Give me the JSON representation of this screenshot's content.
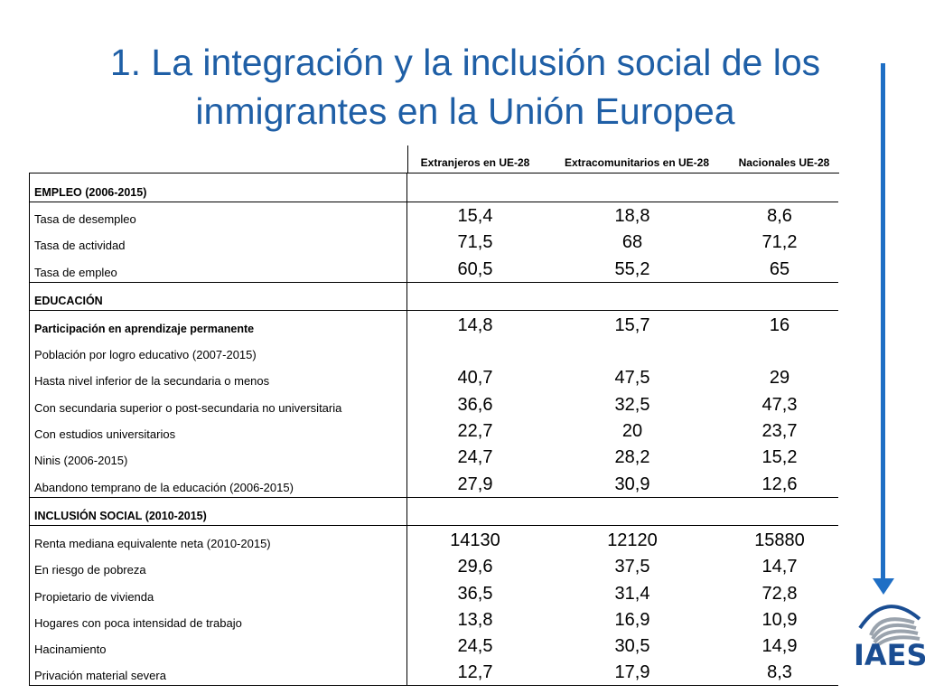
{
  "title": {
    "line1": "1. La integración y la inclusión social de los",
    "line2": "inmigrantes en la Unión Europea"
  },
  "columns": [
    "Extranjeros en UE-28",
    "Extracomunitarios en UE-28",
    "Nacionales UE-28"
  ],
  "sections": {
    "empleo": "EMPLEO (2006-2015)",
    "educacion": "EDUCACIÓN",
    "inclusion": "INCLUSIÓN SOCIAL (2010-2015)"
  },
  "rows": {
    "r1": {
      "label": "Tasa de desempleo",
      "v1": "15,4",
      "v2": "18,8",
      "v3": "8,6"
    },
    "r2": {
      "label": "Tasa de actividad",
      "v1": "71,5",
      "v2": "68",
      "v3": "71,2"
    },
    "r3": {
      "label": "Tasa de empleo",
      "v1": "60,5",
      "v2": "55,2",
      "v3": "65"
    },
    "r4": {
      "label": "Participación en aprendizaje permanente",
      "v1": "14,8",
      "v2": "15,7",
      "v3": "16"
    },
    "r5": {
      "label": "Población por logro educativo (2007-2015)",
      "v1": "",
      "v2": "",
      "v3": ""
    },
    "r6": {
      "label": "Hasta nivel inferior de la secundaria o menos",
      "v1": "40,7",
      "v2": "47,5",
      "v3": "29"
    },
    "r7": {
      "label": "Con secundaria superior o post-secundaria no universitaria",
      "v1": "36,6",
      "v2": "32,5",
      "v3": "47,3"
    },
    "r8": {
      "label": "Con estudios universitarios",
      "v1": "22,7",
      "v2": "20",
      "v3": "23,7"
    },
    "r9": {
      "label": "Ninis (2006-2015)",
      "v1": "24,7",
      "v2": "28,2",
      "v3": "15,2"
    },
    "r10": {
      "label": "Abandono temprano de la educación (2006-2015)",
      "v1": "27,9",
      "v2": "30,9",
      "v3": "12,6"
    },
    "r11": {
      "label": "Renta mediana equivalente neta (2010-2015)",
      "v1": "14130",
      "v2": "12120",
      "v3": "15880"
    },
    "r12": {
      "label": "En riesgo de pobreza",
      "v1": "29,6",
      "v2": "37,5",
      "v3": "14,7"
    },
    "r13": {
      "label": "Propietario de vivienda",
      "v1": "36,5",
      "v2": "31,4",
      "v3": "72,8"
    },
    "r14": {
      "label": "Hogares con poca intensidad de trabajo",
      "v1": "13,8",
      "v2": "16,9",
      "v3": "10,9"
    },
    "r15": {
      "label": "Hacinamiento",
      "v1": "24,5",
      "v2": "30,5",
      "v3": "14,9"
    },
    "r16": {
      "label": "Privación material severa",
      "v1": "12,7",
      "v2": "17,9",
      "v3": "8,3"
    }
  },
  "logo": {
    "text": "IAES"
  },
  "colors": {
    "title": "#1f5fa6",
    "arrow": "#1f6fc5",
    "logo": "#1a4d92"
  }
}
